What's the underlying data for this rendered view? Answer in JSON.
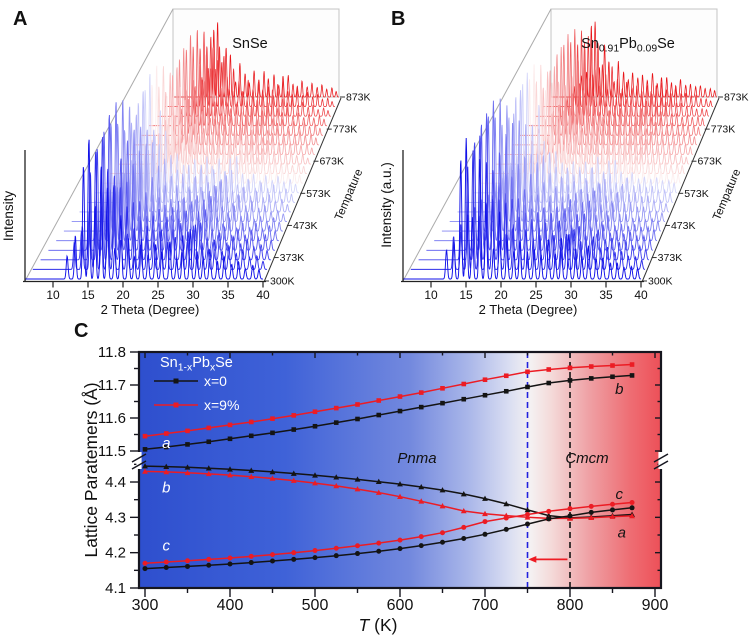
{
  "panels": {
    "A": {
      "letter": "A"
    },
    "B": {
      "letter": "B"
    },
    "C": {
      "letter": "C"
    }
  },
  "chart_data": [
    {
      "id": "A",
      "type": "xrd_waterfall_3d",
      "title": "SnSe",
      "title_segments": [
        {
          "t": "SnSe"
        }
      ],
      "xlabel": "2 Theta (Degree)",
      "ylabel": "Intensity",
      "temperature_axis_label": "Tempature",
      "x_ticks": [
        10,
        15,
        20,
        25,
        30,
        35,
        40
      ],
      "theta_range": [
        6,
        41
      ],
      "temperature_ticks": [
        {
          "T": 300,
          "label": "300K"
        },
        {
          "T": 373,
          "label": "373K"
        },
        {
          "T": 473,
          "label": "473K"
        },
        {
          "T": 573,
          "label": "573K"
        },
        {
          "T": 673,
          "label": "673K"
        },
        {
          "T": 773,
          "label": "773K"
        },
        {
          "T": 873,
          "label": "873K"
        }
      ],
      "n_traces": 20,
      "t_range": [
        300,
        873
      ],
      "color_low": "#1111e8",
      "color_mid": "#eef0fc",
      "color_high": "#e8161a",
      "peaks": [
        [
          12.2,
          0.2
        ],
        [
          13.4,
          0.35
        ],
        [
          14.6,
          0.85
        ],
        [
          15.4,
          1.0
        ],
        [
          16.3,
          0.5
        ],
        [
          17.2,
          0.75
        ],
        [
          18.1,
          0.6
        ],
        [
          19.2,
          0.2
        ],
        [
          20.1,
          0.42
        ],
        [
          21.2,
          0.28
        ],
        [
          22.1,
          0.16
        ],
        [
          23.1,
          0.3
        ],
        [
          24.1,
          0.2
        ],
        [
          25.2,
          0.3
        ],
        [
          26.1,
          0.22
        ],
        [
          27.3,
          0.28
        ],
        [
          28.3,
          0.15
        ],
        [
          29.2,
          0.3
        ],
        [
          30.3,
          0.33
        ],
        [
          31.3,
          0.18
        ],
        [
          32.2,
          0.14
        ],
        [
          33.2,
          0.2
        ],
        [
          34.3,
          0.12
        ],
        [
          35.3,
          0.16
        ],
        [
          36.4,
          0.11
        ],
        [
          37.4,
          0.14
        ],
        [
          38.4,
          0.09
        ],
        [
          39.5,
          0.11
        ],
        [
          40.4,
          0.07
        ]
      ]
    },
    {
      "id": "B",
      "type": "xrd_waterfall_3d",
      "title_segments": [
        {
          "t": "Sn"
        },
        {
          "sub": "0.91"
        },
        {
          "t": "Pb"
        },
        {
          "sub": "0.09"
        },
        {
          "t": "Se"
        }
      ],
      "xlabel": "2 Theta (Degree)",
      "ylabel": "Intensity (a.u.)",
      "temperature_axis_label": "Tempature",
      "x_ticks": [
        10,
        15,
        20,
        25,
        30,
        35,
        40
      ],
      "theta_range": [
        6,
        41
      ],
      "temperature_ticks": [
        {
          "T": 300,
          "label": "300K"
        },
        {
          "T": 373,
          "label": "373K"
        },
        {
          "T": 473,
          "label": "473K"
        },
        {
          "T": 573,
          "label": "573K"
        },
        {
          "T": 673,
          "label": "673K"
        },
        {
          "T": 773,
          "label": "773K"
        },
        {
          "T": 873,
          "label": "873K"
        }
      ],
      "n_traces": 20,
      "t_range": [
        300,
        873
      ],
      "color_low": "#1111e8",
      "color_mid": "#eef0fc",
      "color_high": "#e8161a",
      "peaks": [
        [
          12.4,
          0.25
        ],
        [
          13.5,
          0.3
        ],
        [
          14.5,
          0.9
        ],
        [
          15.3,
          1.0
        ],
        [
          16.2,
          0.42
        ],
        [
          17.3,
          0.8
        ],
        [
          18.2,
          0.5
        ],
        [
          19.3,
          0.2
        ],
        [
          20.2,
          0.45
        ],
        [
          21.3,
          0.3
        ],
        [
          22.3,
          0.2
        ],
        [
          23.2,
          0.28
        ],
        [
          24.3,
          0.22
        ],
        [
          25.3,
          0.26
        ],
        [
          26.3,
          0.2
        ],
        [
          27.4,
          0.3
        ],
        [
          28.4,
          0.18
        ],
        [
          29.3,
          0.28
        ],
        [
          30.4,
          0.3
        ],
        [
          31.4,
          0.2
        ],
        [
          32.3,
          0.15
        ],
        [
          33.3,
          0.22
        ],
        [
          34.4,
          0.14
        ],
        [
          35.4,
          0.15
        ],
        [
          36.5,
          0.12
        ],
        [
          37.5,
          0.13
        ],
        [
          38.5,
          0.1
        ],
        [
          39.6,
          0.1
        ],
        [
          40.5,
          0.08
        ]
      ]
    },
    {
      "id": "C",
      "type": "line",
      "xlabel_segments": [
        {
          "t": "T",
          "italic": true
        },
        {
          "t": " (K)"
        }
      ],
      "ylabel": "Lattice Paratemers (Å)",
      "x_ticks": [
        300,
        400,
        500,
        600,
        700,
        800,
        900
      ],
      "x_minor_ticks": [
        350,
        450,
        550,
        650,
        750,
        850
      ],
      "y_ticks_top": [
        11.5,
        11.6,
        11.7,
        11.8
      ],
      "y_minor_ticks_top": [
        11.55,
        11.65,
        11.75
      ],
      "y_ticks_bottom": [
        4.1,
        4.2,
        4.3,
        4.4
      ],
      "y_minor_ticks_bottom": [
        4.15,
        4.25,
        4.35,
        4.45
      ],
      "y_top_range": [
        11.5,
        11.8
      ],
      "y_bottom_range": [
        4.1,
        4.45
      ],
      "axis_break": true,
      "legend": {
        "title_segments": [
          {
            "t": "Sn"
          },
          {
            "sub": "1-x"
          },
          {
            "t": "Pb"
          },
          {
            "sub": "x"
          },
          {
            "t": "Se"
          }
        ],
        "entries": [
          {
            "label": "x=0",
            "color": "#141414"
          },
          {
            "label": "x=9%",
            "color": "#ec1c24"
          }
        ],
        "text_color": "#ffffff"
      },
      "T": [
        300,
        325,
        350,
        375,
        400,
        425,
        450,
        475,
        500,
        525,
        550,
        575,
        600,
        625,
        650,
        675,
        700,
        725,
        750,
        775,
        800,
        825,
        850,
        873
      ],
      "series": [
        {
          "name": "a-axis x=0",
          "color": "#141414",
          "marker": "square",
          "segment": "top",
          "values": [
            11.505,
            11.512,
            11.52,
            11.528,
            11.537,
            11.546,
            11.555,
            11.565,
            11.575,
            11.586,
            11.597,
            11.609,
            11.621,
            11.633,
            11.645,
            11.657,
            11.669,
            11.681,
            11.694,
            11.706,
            11.714,
            11.72,
            11.725,
            11.729
          ]
        },
        {
          "name": "a-axis x=9%",
          "color": "#ec1c24",
          "marker": "square",
          "segment": "top",
          "values": [
            11.545,
            11.553,
            11.561,
            11.57,
            11.579,
            11.588,
            11.598,
            11.608,
            11.619,
            11.63,
            11.641,
            11.653,
            11.665,
            11.677,
            11.69,
            11.703,
            11.716,
            11.728,
            11.74,
            11.747,
            11.752,
            11.756,
            11.759,
            11.762
          ]
        },
        {
          "name": "b-axis x=0",
          "color": "#141414",
          "marker": "triangle",
          "segment": "bottom",
          "values": [
            4.445,
            4.4435,
            4.4415,
            4.439,
            4.436,
            4.4325,
            4.4285,
            4.424,
            4.419,
            4.4135,
            4.4075,
            4.401,
            4.394,
            4.386,
            4.377,
            4.366,
            4.353,
            4.338,
            4.321,
            4.305,
            4.2985,
            4.301,
            4.3045,
            4.308
          ]
        },
        {
          "name": "b-axis x=9%",
          "color": "#ec1c24",
          "marker": "triangle",
          "segment": "bottom",
          "values": [
            4.43,
            4.4285,
            4.426,
            4.423,
            4.4195,
            4.415,
            4.41,
            4.404,
            4.397,
            4.389,
            4.38,
            4.37,
            4.3585,
            4.3455,
            4.332,
            4.318,
            4.31,
            4.305,
            4.3,
            4.297,
            4.297,
            4.299,
            4.302,
            4.304
          ]
        },
        {
          "name": "c-axis x=0",
          "color": "#141414",
          "marker": "circle",
          "segment": "bottom",
          "values": [
            4.155,
            4.158,
            4.161,
            4.1645,
            4.168,
            4.172,
            4.1765,
            4.181,
            4.186,
            4.1915,
            4.1975,
            4.204,
            4.2115,
            4.22,
            4.2295,
            4.24,
            4.252,
            4.266,
            4.281,
            4.2955,
            4.304,
            4.314,
            4.321,
            4.327
          ]
        },
        {
          "name": "c-axis x=9%",
          "color": "#ec1c24",
          "marker": "circle",
          "segment": "bottom",
          "values": [
            4.17,
            4.1735,
            4.177,
            4.181,
            4.185,
            4.1895,
            4.1945,
            4.2,
            4.206,
            4.2125,
            4.2195,
            4.227,
            4.2355,
            4.2455,
            4.2565,
            4.2715,
            4.288,
            4.298,
            4.308,
            4.317,
            4.3245,
            4.331,
            4.337,
            4.342
          ]
        }
      ],
      "phase_labels": [
        {
          "text": "Pnma",
          "T": 620
        },
        {
          "text": "Cmcm",
          "T": 820
        }
      ],
      "curve_labels": [
        {
          "text": "a",
          "T": 325,
          "v": 11.525,
          "color": "#ffffff"
        },
        {
          "text": "b",
          "T": 325,
          "v": 4.385,
          "color": "#ffffff"
        },
        {
          "text": "c",
          "T": 325,
          "v": 4.221,
          "color": "#ffffff"
        },
        {
          "text": "b",
          "T": 858,
          "v": 11.688,
          "color": "#141414"
        },
        {
          "text": "c",
          "T": 858,
          "v": 4.366,
          "color": "#141414"
        },
        {
          "text": "a",
          "T": 861,
          "v": 4.257,
          "color": "#141414"
        }
      ],
      "vlines": [
        {
          "T": 750,
          "color": "#2222dd"
        },
        {
          "T": 800,
          "color": "#141414"
        }
      ],
      "arrow": {
        "T_from": 797,
        "T_to": 751,
        "v": 4.181,
        "color": "#ee1c24"
      },
      "bg_gradient": [
        [
          0,
          "#2e4fce"
        ],
        [
          0.28,
          "#3f62d8"
        ],
        [
          0.52,
          "#7389de"
        ],
        [
          0.63,
          "#a9b6e9"
        ],
        [
          0.71,
          "#dadef2"
        ],
        [
          0.75,
          "#f4f1f2"
        ],
        [
          0.79,
          "#f4dad9"
        ],
        [
          0.86,
          "#efa2a6"
        ],
        [
          0.94,
          "#ee6e74"
        ],
        [
          1,
          "#ed5058"
        ]
      ]
    }
  ]
}
